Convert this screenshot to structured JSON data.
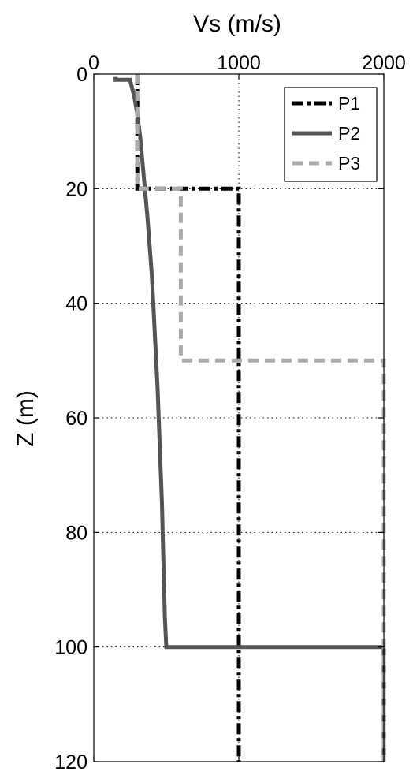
{
  "chart_data": {
    "type": "line",
    "title": "",
    "xlabel": "Vs (m/s)",
    "ylabel": "Z (m)",
    "x_axis_position": "top",
    "y_axis_reversed": true,
    "xlim": [
      0,
      2000
    ],
    "ylim": [
      0,
      120
    ],
    "xticks": [
      0,
      1000,
      2000
    ],
    "yticks": [
      0,
      20,
      40,
      60,
      80,
      100,
      120
    ],
    "xtick_labels": [
      "0",
      "1000",
      "2000"
    ],
    "ytick_labels": [
      "0",
      "20",
      "40",
      "60",
      "80",
      "100",
      "120"
    ],
    "grid": true,
    "legend": {
      "position": "top-right",
      "entries": [
        "P1",
        "P2",
        "P3"
      ]
    },
    "series": [
      {
        "name": "P1",
        "style": "dash-dot",
        "color": "#000000",
        "points": [
          [
            300,
            0
          ],
          [
            300,
            20
          ],
          [
            1000,
            20
          ],
          [
            1000,
            120
          ]
        ]
      },
      {
        "name": "P2",
        "style": "solid",
        "color": "#555555",
        "points": [
          [
            150,
            0.5
          ],
          [
            150,
            1
          ],
          [
            250,
            1
          ],
          [
            260,
            2
          ],
          [
            280,
            4
          ],
          [
            300,
            7
          ],
          [
            320,
            11
          ],
          [
            345,
            18
          ],
          [
            370,
            25
          ],
          [
            400,
            35
          ],
          [
            420,
            45
          ],
          [
            440,
            55
          ],
          [
            455,
            65
          ],
          [
            470,
            75
          ],
          [
            480,
            85
          ],
          [
            490,
            95
          ],
          [
            500,
            100
          ],
          [
            2000,
            100
          ],
          [
            2000,
            120
          ]
        ]
      },
      {
        "name": "P3",
        "style": "dashed",
        "color": "#aaaaaa",
        "points": [
          [
            300,
            0
          ],
          [
            300,
            20
          ],
          [
            600,
            20
          ],
          [
            600,
            50
          ],
          [
            2000,
            50
          ],
          [
            2000,
            120
          ]
        ]
      }
    ]
  }
}
